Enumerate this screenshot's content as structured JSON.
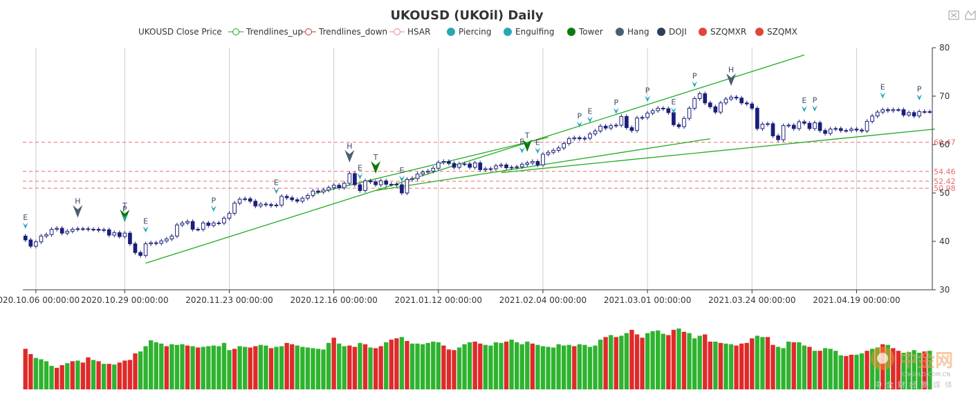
{
  "chart_data": {
    "type": "candlestick",
    "title": "UKOUSD (UKOil) Daily",
    "legend": [
      "UKOUSD Close Price",
      "Trendlines_up",
      "Trendlines_down",
      "HSAR",
      "Piercing",
      "Engulfing",
      "Tower",
      "Hang",
      "DOJI",
      "SZQMXR",
      "SZQMX"
    ],
    "legend_colors": [
      "#2f3e9e",
      "#1aa31a",
      "#c23531",
      "#f08080",
      "#2aa6b8",
      "#2aa6b8",
      "#0d7a0d",
      "#4a5e70",
      "#2f3e5a",
      "#e0453a",
      "#e0453a"
    ],
    "colors": {
      "up": "#1b1f7a",
      "down": "#1b1f7a",
      "trend": "#22aa22",
      "hsar": "#e86a6a",
      "vol_up": "#2fb32f",
      "vol_down": "#e02a2a",
      "piercing": "#2aa6b8",
      "hang": "#4a5e70",
      "tower": "#0d7a0d"
    },
    "y_axis": {
      "min": 30,
      "max": 80,
      "ticks": [
        30,
        40,
        50,
        60,
        70,
        80
      ],
      "position": "right"
    },
    "x_axis_labels": [
      "2020.10.06 00:00:00",
      "2020.10.29 00:00:00",
      "2020.11.23 00:00:00",
      "2020.12.16 00:00:00",
      "2021.01.12 00:00:00",
      "2021.02.04 00:00:00",
      "2021.03.01 00:00:00",
      "2021.03.24 00:00:00",
      "2021.04.19 00:00:00"
    ],
    "x_axis_label_index": [
      2,
      19,
      39,
      59,
      79,
      99,
      119,
      139,
      159
    ],
    "grid_x": true,
    "grid_y": false,
    "close": [
      40.3,
      39.0,
      39.9,
      41.1,
      41.4,
      42.5,
      42.7,
      41.7,
      42.1,
      42.5,
      42.6,
      42.6,
      42.5,
      42.5,
      42.3,
      42.4,
      41.3,
      41.8,
      41.0,
      41.7,
      39.5,
      37.7,
      37.1,
      39.5,
      39.7,
      39.6,
      40.1,
      40.5,
      41.1,
      43.4,
      43.8,
      44.1,
      42.5,
      42.5,
      43.8,
      43.3,
      43.8,
      43.8,
      44.8,
      45.8,
      47.9,
      48.7,
      48.8,
      48.3,
      47.3,
      47.7,
      47.6,
      47.4,
      47.5,
      49.3,
      49.0,
      48.6,
      48.3,
      48.9,
      49.5,
      50.4,
      50.2,
      50.6,
      51.1,
      51.6,
      51.1,
      52.0,
      54.0,
      51.7,
      50.5,
      52.5,
      52.3,
      51.7,
      52.5,
      51.8,
      51.8,
      51.7,
      50.0,
      52.8,
      53.0,
      53.9,
      54.3,
      54.5,
      55.1,
      56.3,
      56.5,
      56.1,
      55.3,
      56.0,
      56.0,
      55.3,
      56.2,
      54.8,
      55.0,
      55.0,
      55.6,
      55.8,
      55.2,
      55.3,
      55.4,
      55.9,
      56.2,
      56.5,
      55.8,
      58.0,
      58.4,
      58.8,
      59.3,
      60.2,
      61.2,
      61.4,
      61.2,
      61.3,
      62.2,
      62.8,
      63.8,
      63.4,
      63.9,
      64.0,
      65.8,
      63.5,
      62.9,
      65.5,
      65.6,
      66.5,
      67.0,
      67.5,
      67.4,
      66.6,
      64.1,
      63.7,
      65.4,
      67.5,
      69.5,
      70.5,
      68.6,
      67.8,
      66.7,
      68.6,
      69.4,
      69.8,
      69.6,
      68.6,
      68.4,
      67.5,
      63.3,
      64.2,
      64.3,
      61.8,
      61.0,
      63.9,
      64.0,
      63.3,
      64.7,
      64.4,
      63.3,
      64.5,
      62.9,
      62.3,
      63.2,
      63.3,
      62.9,
      62.9,
      63.2,
      63.0,
      62.8,
      64.8,
      65.9,
      66.7,
      67.2,
      67.0,
      67.2,
      67.2,
      66.1,
      66.6,
      65.9,
      66.8,
      66.8,
      66.8
    ]
  },
  "signals": [
    {
      "i": 0,
      "label": "E",
      "kind": "piercing"
    },
    {
      "i": 10,
      "label": "H",
      "kind": "hang"
    },
    {
      "i": 19,
      "label": "T",
      "kind": "tower"
    },
    {
      "i": 19,
      "label": "P",
      "kind": "piercing"
    },
    {
      "i": 23,
      "label": "E",
      "kind": "piercing"
    },
    {
      "i": 36,
      "label": "P",
      "kind": "piercing"
    },
    {
      "i": 48,
      "label": "E",
      "kind": "piercing"
    },
    {
      "i": 62,
      "label": "H",
      "kind": "hang"
    },
    {
      "i": 64,
      "label": "E",
      "kind": "piercing"
    },
    {
      "i": 67,
      "label": "T",
      "kind": "tower"
    },
    {
      "i": 72,
      "label": "E",
      "kind": "piercing"
    },
    {
      "i": 95,
      "label": "E",
      "kind": "piercing"
    },
    {
      "i": 96,
      "label": "T",
      "kind": "tower"
    },
    {
      "i": 98,
      "label": "E",
      "kind": "piercing"
    },
    {
      "i": 106,
      "label": "P",
      "kind": "piercing"
    },
    {
      "i": 108,
      "label": "E",
      "kind": "piercing"
    },
    {
      "i": 113,
      "label": "P",
      "kind": "piercing"
    },
    {
      "i": 119,
      "label": "P",
      "kind": "piercing"
    },
    {
      "i": 124,
      "label": "E",
      "kind": "piercing"
    },
    {
      "i": 128,
      "label": "P",
      "kind": "piercing"
    },
    {
      "i": 135,
      "label": "H",
      "kind": "hang"
    },
    {
      "i": 149,
      "label": "E",
      "kind": "piercing"
    },
    {
      "i": 151,
      "label": "P",
      "kind": "piercing"
    },
    {
      "i": 164,
      "label": "E",
      "kind": "piercing"
    },
    {
      "i": 171,
      "label": "P",
      "kind": "piercing"
    }
  ],
  "trendlines": [
    {
      "i1": 23,
      "v1": 35.5,
      "i2": 149,
      "v2": 78.5
    },
    {
      "i1": 55,
      "v1": 49.8,
      "i2": 100,
      "v2": 61.5
    },
    {
      "i1": 67,
      "v1": 50.5,
      "i2": 131,
      "v2": 61.2
    },
    {
      "i1": 91,
      "v1": 54.2,
      "i2": 174,
      "v2": 63.2
    }
  ],
  "hsar_levels": [
    {
      "value": 60.47,
      "label": "60.47"
    },
    {
      "value": 54.46,
      "label": "54.46"
    },
    {
      "value": 52.42,
      "label": "52.42"
    },
    {
      "value": 50.98,
      "label": "50.98"
    }
  ],
  "volume": [
    62,
    54,
    48,
    46,
    43,
    36,
    33,
    37,
    40,
    43,
    44,
    41,
    49,
    45,
    43,
    39,
    39,
    38,
    41,
    44,
    45,
    55,
    58,
    66,
    75,
    72,
    70,
    66,
    69,
    68,
    69,
    67,
    66,
    64,
    65,
    66,
    67,
    66,
    71,
    60,
    62,
    66,
    65,
    64,
    66,
    68,
    67,
    63,
    65,
    66,
    71,
    69,
    67,
    65,
    64,
    63,
    62,
    61,
    71,
    79,
    70,
    66,
    67,
    65,
    71,
    69,
    64,
    63,
    66,
    72,
    76,
    78,
    80,
    74,
    70,
    70,
    69,
    71,
    73,
    72,
    67,
    61,
    60,
    64,
    69,
    72,
    73,
    70,
    68,
    67,
    72,
    71,
    73,
    76,
    72,
    69,
    73,
    70,
    68,
    66,
    65,
    64,
    69,
    67,
    68,
    66,
    69,
    68,
    65,
    67,
    76,
    80,
    83,
    80,
    82,
    86,
    91,
    84,
    79,
    86,
    89,
    90,
    85,
    83,
    91,
    93,
    88,
    86,
    78,
    82,
    84,
    73,
    73,
    71,
    70,
    69,
    67,
    70,
    71,
    78,
    82,
    80,
    80,
    68,
    65,
    63,
    73,
    72,
    72,
    67,
    65,
    59,
    59,
    63,
    62,
    59,
    52,
    51,
    53,
    53,
    55,
    59,
    62,
    64,
    69,
    68,
    63,
    59,
    56,
    57,
    60,
    56,
    58,
    59
  ],
  "volume_dir": [
    "d",
    "d",
    "u",
    "u",
    "u",
    "u",
    "d",
    "d",
    "u",
    "d",
    "u",
    "d",
    "d",
    "u",
    "d",
    "u",
    "d",
    "u",
    "d",
    "d",
    "d",
    "d",
    "u",
    "u",
    "u",
    "u",
    "u",
    "d",
    "u",
    "u",
    "u",
    "d",
    "u",
    "d",
    "u",
    "u",
    "u",
    "u",
    "u",
    "u",
    "d",
    "u",
    "u",
    "d",
    "d",
    "u",
    "u",
    "d",
    "u",
    "u",
    "d",
    "d",
    "u",
    "u",
    "u",
    "u",
    "u",
    "u",
    "u",
    "d",
    "u",
    "u",
    "d",
    "d",
    "u",
    "d",
    "u",
    "d",
    "d",
    "u",
    "d",
    "d",
    "u",
    "d",
    "u",
    "u",
    "u",
    "u",
    "u",
    "u",
    "d",
    "d",
    "d",
    "u",
    "u",
    "u",
    "d",
    "d",
    "u",
    "u",
    "u",
    "u",
    "d",
    "u",
    "u",
    "u",
    "u",
    "d",
    "u",
    "u",
    "u",
    "u",
    "u",
    "u",
    "u",
    "d",
    "u",
    "u",
    "u",
    "u",
    "u",
    "d",
    "u",
    "d",
    "u",
    "u",
    "d",
    "d",
    "d",
    "u",
    "u",
    "u",
    "u",
    "d",
    "d",
    "u",
    "d",
    "u",
    "u",
    "u",
    "d",
    "d",
    "u",
    "d",
    "u",
    "u",
    "d",
    "d",
    "d",
    "d",
    "u",
    "u",
    "d",
    "d",
    "u",
    "u",
    "u",
    "d",
    "u",
    "u",
    "d",
    "u",
    "d",
    "u",
    "u",
    "u",
    "u",
    "d",
    "d",
    "u",
    "u",
    "d",
    "u",
    "u",
    "d",
    "u",
    "d",
    "d",
    "u",
    "u",
    "u",
    "u",
    "d",
    "u"
  ],
  "toolbar": {
    "icon1": "fullscreen-icon",
    "icon2": "restore-icon"
  },
  "watermark": {
    "main": "中金网",
    "sub": "CNGOLD.COM.CN",
    "cn": "中金财经新媒体"
  }
}
